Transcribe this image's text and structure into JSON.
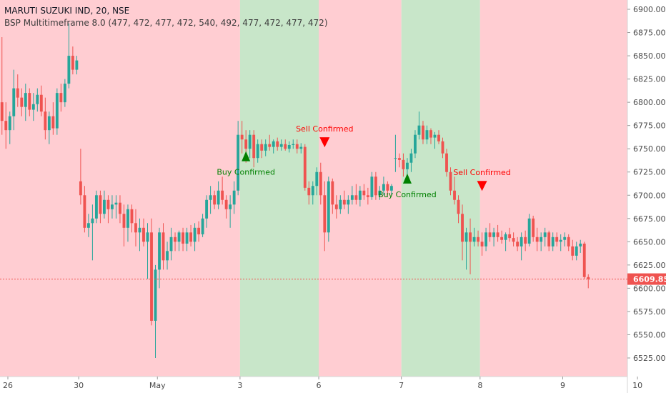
{
  "chart_data": {
    "type": "candlestick",
    "title": "MARUTI SUZUKI IND, 20, NSE",
    "indicator": "BSP Multitimeframe 8.0 (477, 472, 477, 472, 540, 492, 477, 472, 477, 472)",
    "ylim": [
      6505,
      6910
    ],
    "y_ticks": [
      "6525.00",
      "6550.00",
      "6575.00",
      "6600.00",
      "6625.00",
      "6650.00",
      "6675.00",
      "6700.00",
      "6725.00",
      "6750.00",
      "6775.00",
      "6800.00",
      "6825.00",
      "6850.00",
      "6875.00",
      "6900.00"
    ],
    "x_ticks": [
      "26",
      "30",
      "May",
      "3",
      "6",
      "7",
      "8",
      "9",
      "10"
    ],
    "last_price": "6609.85",
    "colors": {
      "up": "#26a69a",
      "down": "#ef5350",
      "bear_zone": "#ffcdd2",
      "bull_zone": "#c8e6c9",
      "buy": "#008000",
      "sell": "#ff0000"
    },
    "zones": [
      {
        "type": "bear",
        "from": 0,
        "to": 61
      },
      {
        "type": "bull",
        "from": 61,
        "to": 81
      },
      {
        "type": "bear",
        "from": 81,
        "to": 102
      },
      {
        "type": "bull",
        "from": 102,
        "to": 122
      },
      {
        "type": "bear",
        "from": 122,
        "to": 163
      }
    ],
    "signals": [
      {
        "type": "buy",
        "label": "Buy Confirmed",
        "bar": 62,
        "price": 6742
      },
      {
        "type": "sell",
        "label": "Sell Confirmed",
        "bar": 82,
        "price": 6757
      },
      {
        "type": "buy",
        "label": "Buy Confirmed",
        "bar": 103,
        "price": 6718
      },
      {
        "type": "sell",
        "label": "Sell Confirmed",
        "bar": 122,
        "price": 6710
      }
    ],
    "candles_ohlc": [
      [
        6800,
        6870,
        6765,
        6780
      ],
      [
        6780,
        6800,
        6750,
        6770
      ],
      [
        6770,
        6790,
        6755,
        6785
      ],
      [
        6785,
        6835,
        6770,
        6815
      ],
      [
        6815,
        6830,
        6795,
        6805
      ],
      [
        6805,
        6815,
        6785,
        6795
      ],
      [
        6795,
        6820,
        6780,
        6810
      ],
      [
        6810,
        6815,
        6785,
        6792
      ],
      [
        6792,
        6810,
        6780,
        6798
      ],
      [
        6798,
        6815,
        6790,
        6808
      ],
      [
        6808,
        6818,
        6785,
        6790
      ],
      [
        6790,
        6805,
        6760,
        6770
      ],
      [
        6770,
        6790,
        6755,
        6785
      ],
      [
        6785,
        6800,
        6765,
        6772
      ],
      [
        6772,
        6815,
        6765,
        6810
      ],
      [
        6810,
        6820,
        6790,
        6800
      ],
      [
        6800,
        6825,
        6795,
        6820
      ],
      [
        6820,
        6885,
        6815,
        6850
      ],
      [
        6850,
        6860,
        6830,
        6835
      ],
      [
        6835,
        6850,
        6830,
        6845
      ],
      [
        6715,
        6750,
        6690,
        6700
      ],
      [
        6700,
        6710,
        6660,
        6665
      ],
      [
        6665,
        6680,
        6655,
        6670
      ],
      [
        6670,
        6690,
        6630,
        6675
      ],
      [
        6675,
        6705,
        6670,
        6700
      ],
      [
        6700,
        6705,
        6670,
        6680
      ],
      [
        6680,
        6705,
        6675,
        6695
      ],
      [
        6695,
        6700,
        6670,
        6685
      ],
      [
        6685,
        6700,
        6675,
        6690
      ],
      [
        6690,
        6700,
        6675,
        6692
      ],
      [
        6692,
        6700,
        6670,
        6680
      ],
      [
        6680,
        6690,
        6645,
        6665
      ],
      [
        6665,
        6690,
        6650,
        6685
      ],
      [
        6685,
        6690,
        6660,
        6670
      ],
      [
        6670,
        6685,
        6645,
        6660
      ],
      [
        6660,
        6675,
        6640,
        6665
      ],
      [
        6665,
        6675,
        6645,
        6650
      ],
      [
        6650,
        6670,
        6610,
        6660
      ],
      [
        6660,
        6675,
        6560,
        6565
      ],
      [
        6565,
        6625,
        6525,
        6620
      ],
      [
        6620,
        6665,
        6600,
        6660
      ],
      [
        6660,
        6670,
        6620,
        6630
      ],
      [
        6630,
        6650,
        6620,
        6640
      ],
      [
        6640,
        6665,
        6630,
        6655
      ],
      [
        6655,
        6660,
        6640,
        6650
      ],
      [
        6650,
        6662,
        6640,
        6660
      ],
      [
        6660,
        6665,
        6640,
        6648
      ],
      [
        6648,
        6665,
        6640,
        6660
      ],
      [
        6660,
        6668,
        6645,
        6650
      ],
      [
        6650,
        6670,
        6640,
        6665
      ],
      [
        6665,
        6672,
        6650,
        6658
      ],
      [
        6658,
        6680,
        6655,
        6675
      ],
      [
        6675,
        6700,
        6665,
        6695
      ],
      [
        6695,
        6710,
        6680,
        6700
      ],
      [
        6700,
        6705,
        6685,
        6690
      ],
      [
        6690,
        6715,
        6685,
        6705
      ],
      [
        6705,
        6720,
        6690,
        6695
      ],
      [
        6695,
        6700,
        6675,
        6685
      ],
      [
        6685,
        6700,
        6665,
        6690
      ],
      [
        6690,
        6715,
        6680,
        6705
      ],
      [
        6705,
        6780,
        6700,
        6765
      ],
      [
        6765,
        6780,
        6745,
        6760
      ],
      [
        6760,
        6770,
        6735,
        6750
      ],
      [
        6750,
        6770,
        6740,
        6765
      ],
      [
        6765,
        6770,
        6730,
        6740
      ],
      [
        6740,
        6760,
        6735,
        6755
      ],
      [
        6755,
        6760,
        6740,
        6748
      ],
      [
        6748,
        6760,
        6742,
        6755
      ],
      [
        6755,
        6765,
        6748,
        6752
      ],
      [
        6752,
        6760,
        6745,
        6758
      ],
      [
        6758,
        6762,
        6748,
        6752
      ],
      [
        6752,
        6760,
        6748,
        6755
      ],
      [
        6755,
        6760,
        6748,
        6750
      ],
      [
        6750,
        6758,
        6746,
        6754
      ],
      [
        6754,
        6760,
        6750,
        6755
      ],
      [
        6755,
        6760,
        6745,
        6750
      ],
      [
        6750,
        6756,
        6745,
        6752
      ],
      [
        6752,
        6755,
        6705,
        6708
      ],
      [
        6708,
        6715,
        6690,
        6700
      ],
      [
        6700,
        6715,
        6690,
        6710
      ],
      [
        6710,
        6730,
        6700,
        6725
      ],
      [
        6725,
        6735,
        6690,
        6700
      ],
      [
        6700,
        6715,
        6640,
        6660
      ],
      [
        6660,
        6720,
        6650,
        6715
      ],
      [
        6715,
        6718,
        6680,
        6690
      ],
      [
        6690,
        6700,
        6675,
        6685
      ],
      [
        6685,
        6700,
        6680,
        6695
      ],
      [
        6695,
        6705,
        6685,
        6690
      ],
      [
        6690,
        6700,
        6680,
        6695
      ],
      [
        6695,
        6710,
        6690,
        6700
      ],
      [
        6700,
        6712,
        6690,
        6695
      ],
      [
        6695,
        6710,
        6688,
        6705
      ],
      [
        6705,
        6712,
        6695,
        6700
      ],
      [
        6700,
        6708,
        6690,
        6698
      ],
      [
        6698,
        6725,
        6695,
        6720
      ],
      [
        6720,
        6725,
        6695,
        6700
      ],
      [
        6700,
        6710,
        6695,
        6705
      ],
      [
        6705,
        6720,
        6700,
        6712
      ],
      [
        6712,
        6715,
        6700,
        6705
      ],
      [
        6705,
        6712,
        6700,
        6710
      ],
      [
        6740,
        6765,
        6725,
        6740
      ],
      [
        6740,
        6745,
        6730,
        6738
      ],
      [
        6738,
        6745,
        6720,
        6728
      ],
      [
        6728,
        6740,
        6720,
        6735
      ],
      [
        6735,
        6750,
        6725,
        6745
      ],
      [
        6745,
        6770,
        6740,
        6765
      ],
      [
        6765,
        6790,
        6760,
        6775
      ],
      [
        6775,
        6780,
        6755,
        6760
      ],
      [
        6760,
        6775,
        6755,
        6770
      ],
      [
        6770,
        6772,
        6755,
        6762
      ],
      [
        6762,
        6768,
        6750,
        6765
      ],
      [
        6765,
        6770,
        6755,
        6758
      ],
      [
        6758,
        6762,
        6740,
        6745
      ],
      [
        6745,
        6750,
        6720,
        6725
      ],
      [
        6725,
        6730,
        6700,
        6705
      ],
      [
        6705,
        6720,
        6690,
        6695
      ],
      [
        6695,
        6700,
        6670,
        6680
      ],
      [
        6680,
        6690,
        6630,
        6650
      ],
      [
        6650,
        6665,
        6620,
        6660
      ],
      [
        6660,
        6675,
        6615,
        6650
      ],
      [
        6650,
        6665,
        6645,
        6655
      ],
      [
        6655,
        6662,
        6645,
        6650
      ],
      [
        6650,
        6660,
        6635,
        6645
      ],
      [
        6645,
        6665,
        6640,
        6660
      ],
      [
        6660,
        6670,
        6650,
        6655
      ],
      [
        6655,
        6665,
        6645,
        6660
      ],
      [
        6660,
        6668,
        6650,
        6655
      ],
      [
        6655,
        6662,
        6648,
        6652
      ],
      [
        6652,
        6660,
        6640,
        6658
      ],
      [
        6658,
        6665,
        6650,
        6654
      ],
      [
        6654,
        6660,
        6645,
        6650
      ],
      [
        6650,
        6655,
        6640,
        6645
      ],
      [
        6645,
        6660,
        6630,
        6655
      ],
      [
        6655,
        6662,
        6640,
        6648
      ],
      [
        6648,
        6680,
        6645,
        6675
      ],
      [
        6675,
        6678,
        6650,
        6655
      ],
      [
        6655,
        6665,
        6640,
        6650
      ],
      [
        6650,
        6660,
        6640,
        6655
      ],
      [
        6655,
        6665,
        6645,
        6660
      ],
      [
        6660,
        6662,
        6640,
        6645
      ],
      [
        6645,
        6660,
        6640,
        6655
      ],
      [
        6655,
        6660,
        6645,
        6650
      ],
      [
        6650,
        6658,
        6640,
        6652
      ],
      [
        6652,
        6660,
        6645,
        6655
      ],
      [
        6655,
        6658,
        6640,
        6645
      ],
      [
        6645,
        6652,
        6630,
        6635
      ],
      [
        6635,
        6650,
        6630,
        6645
      ],
      [
        6645,
        6652,
        6638,
        6648
      ],
      [
        6648,
        6650,
        6610,
        6612
      ],
      [
        6612,
        6615,
        6600,
        6609.85
      ]
    ]
  }
}
